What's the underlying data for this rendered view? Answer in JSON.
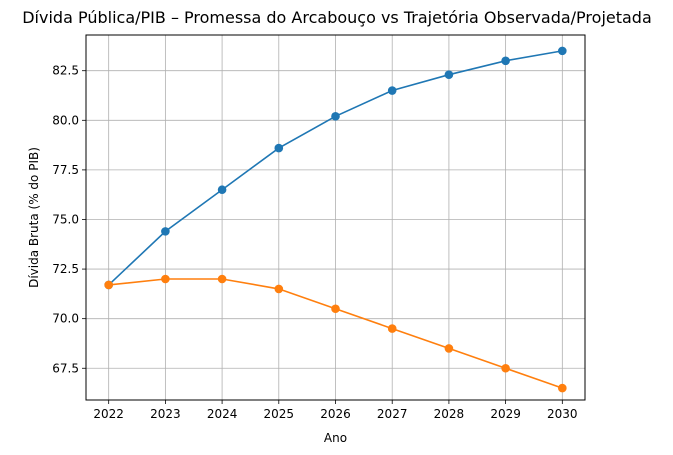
{
  "chart_data": {
    "type": "line",
    "title": "Dívida Pública/PIB – Promessa do Arcabouço vs Trajetória Observada/Projetada",
    "xlabel": "Ano",
    "ylabel": "Dívida Bruta (% do PIB)",
    "x": [
      2022,
      2023,
      2024,
      2025,
      2026,
      2027,
      2028,
      2029,
      2030
    ],
    "x_tick_labels": [
      "2022",
      "2023",
      "2024",
      "2025",
      "2026",
      "2027",
      "2028",
      "2029",
      "2030"
    ],
    "y_ticks": [
      67.5,
      70.0,
      72.5,
      75.0,
      77.5,
      80.0,
      82.5
    ],
    "y_tick_labels": [
      "67.5",
      "70.0",
      "72.5",
      "75.0",
      "77.5",
      "80.0",
      "82.5"
    ],
    "xlim": [
      2021.6,
      2030.4
    ],
    "ylim": [
      65.9,
      84.3
    ],
    "grid": true,
    "series": [
      {
        "values": [
          71.7,
          74.4,
          76.5,
          78.6,
          80.2,
          81.5,
          82.3,
          83.0,
          83.5
        ],
        "color": "#1f77b4",
        "marker": "circle"
      },
      {
        "values": [
          71.7,
          72.0,
          72.0,
          71.5,
          70.5,
          69.5,
          68.5,
          67.5,
          66.5
        ],
        "color": "#ff7f0e",
        "marker": "circle"
      }
    ]
  }
}
